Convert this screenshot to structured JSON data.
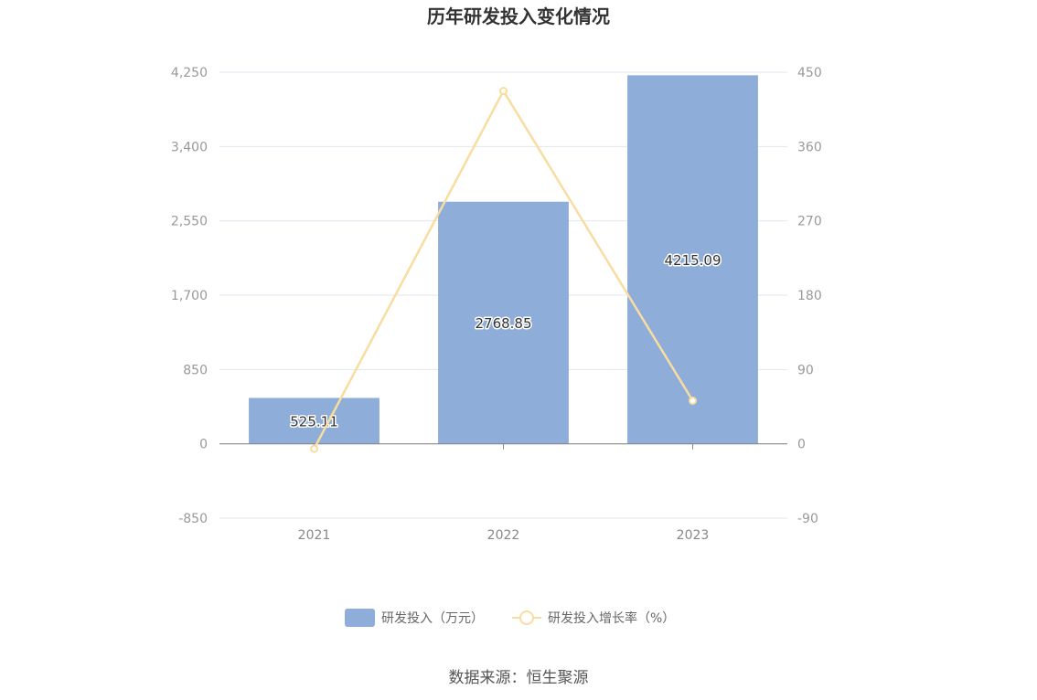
{
  "chart_data": {
    "type": "bar+line",
    "title": "历年研发投入变化情况",
    "categories": [
      "2021",
      "2022",
      "2023"
    ],
    "series": [
      {
        "name": "研发投入（万元）",
        "type": "bar",
        "axis": "left",
        "values": [
          525.11,
          2768.85,
          4215.09
        ],
        "labels": [
          "525.11",
          "2768.85",
          "4215.09"
        ],
        "color": "#8eadd9"
      },
      {
        "name": "研发投入增长率（%）",
        "type": "line",
        "axis": "right",
        "values": [
          -6,
          427.28,
          52.23
        ],
        "color": "#f9dda0"
      }
    ],
    "left_axis": {
      "ylim": [
        -850,
        4250
      ],
      "ticks": [
        "-850",
        "0",
        "850",
        "1,700",
        "2,550",
        "3,400",
        "4,250"
      ],
      "tick_values": [
        -850,
        0,
        850,
        1700,
        2550,
        3400,
        4250
      ]
    },
    "right_axis": {
      "ylim": [
        -90,
        450
      ],
      "ticks": [
        "-90",
        "0",
        "90",
        "180",
        "270",
        "360",
        "450"
      ],
      "tick_values": [
        -90,
        0,
        90,
        180,
        270,
        360,
        450
      ]
    },
    "grid": true,
    "legend_position": "bottom-center"
  },
  "source": "数据来源：恒生聚源"
}
